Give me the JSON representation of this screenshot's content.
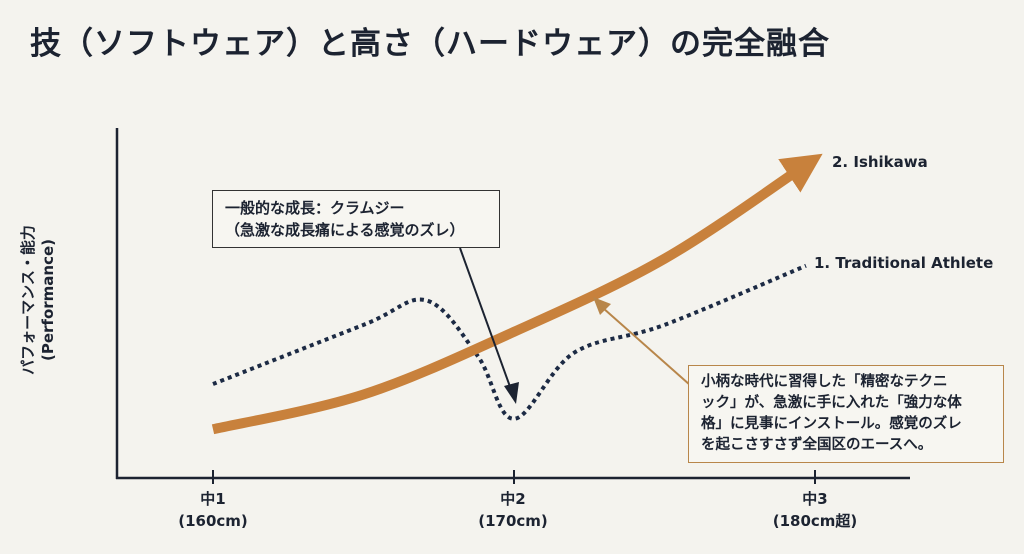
{
  "title": "技（ソフトウェア）と高さ（ハードウェア）の完全融合",
  "chart_data": {
    "type": "line",
    "title": "技（ソフトウェア）と高さ（ハードウェア）の完全融合",
    "ylabel": [
      "パフォーマンス・能力",
      "(Performance)"
    ],
    "xlabel": "",
    "categories": [
      {
        "label": "中1",
        "sub": "(160cm)"
      },
      {
        "label": "中2",
        "sub": "(170cm)"
      },
      {
        "label": "中3",
        "sub": "(180cm超)"
      }
    ],
    "y_ticks_shown": false,
    "grid": false,
    "series": [
      {
        "name": "2. Ishikawa",
        "style": "solid-arrow",
        "color": "#c8813c",
        "x": [
          1,
          1.5,
          2,
          2.5,
          2.97
        ],
        "y": [
          14,
          24,
          42,
          63,
          90
        ]
      },
      {
        "name": "1. Traditional Athlete",
        "style": "dotted",
        "color": "#1c2a44",
        "x": [
          1,
          1.5,
          1.71,
          1.88,
          2,
          2.2,
          2.5,
          2.97
        ],
        "y": [
          27,
          44,
          51,
          35,
          17,
          36,
          44,
          61
        ]
      }
    ],
    "annotations": [
      {
        "lines": [
          "一般的な成長：クラムジー",
          "（急激な成長痛による感覚のズレ）"
        ],
        "points_to": "1. Traditional Athlete dip at 中2"
      },
      {
        "lines": [
          "小柄な時代に習得した「精密なテクニ",
          "ック」が、急激に手に入れた「強力な体",
          "格」に見事にインストール。感覚のズレ",
          "を起こさすさず全国区のエースへ。"
        ],
        "points_to": "2. Ishikawa"
      }
    ]
  }
}
